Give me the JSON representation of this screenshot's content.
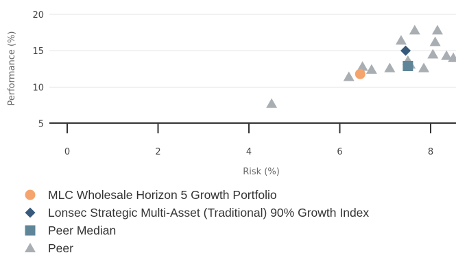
{
  "chart_data": {
    "type": "scatter",
    "title": "",
    "xlabel": "Risk (%)",
    "ylabel": "Performance (%)",
    "xlim": [
      -0.4,
      8.6
    ],
    "ylim": [
      4,
      20.5
    ],
    "x_ticks": [
      0,
      2,
      4,
      6,
      8
    ],
    "y_ticks": [
      5,
      10,
      15,
      20
    ],
    "grid": {
      "x": false,
      "y": true
    },
    "legend_position": "bottom-left",
    "series": [
      {
        "name": "MLC Wholesale Horizon 5 Growth Portfolio",
        "marker": "circle",
        "color": "#f4a46c",
        "points": [
          {
            "x": 6.45,
            "y": 11.8
          }
        ]
      },
      {
        "name": "Lonsec Strategic Multi-Asset (Traditional) 90% Growth Index",
        "marker": "diamond",
        "color": "#365a7c",
        "points": [
          {
            "x": 7.45,
            "y": 15.0
          }
        ]
      },
      {
        "name": "Peer Median",
        "marker": "square",
        "color": "#5f8598",
        "points": [
          {
            "x": 7.5,
            "y": 12.9
          }
        ]
      },
      {
        "name": "Peer",
        "marker": "triangle",
        "color": "#a9aeb3",
        "points": [
          {
            "x": 4.5,
            "y": 7.7
          },
          {
            "x": 6.2,
            "y": 11.4
          },
          {
            "x": 6.5,
            "y": 12.8
          },
          {
            "x": 6.7,
            "y": 12.4
          },
          {
            "x": 7.1,
            "y": 12.6
          },
          {
            "x": 7.35,
            "y": 16.4
          },
          {
            "x": 7.5,
            "y": 13.6
          },
          {
            "x": 7.55,
            "y": 13.1
          },
          {
            "x": 7.65,
            "y": 17.8
          },
          {
            "x": 7.85,
            "y": 12.6
          },
          {
            "x": 8.05,
            "y": 14.5
          },
          {
            "x": 8.1,
            "y": 16.2
          },
          {
            "x": 8.15,
            "y": 17.8
          },
          {
            "x": 8.35,
            "y": 14.3
          },
          {
            "x": 8.5,
            "y": 14.0
          }
        ]
      }
    ]
  }
}
